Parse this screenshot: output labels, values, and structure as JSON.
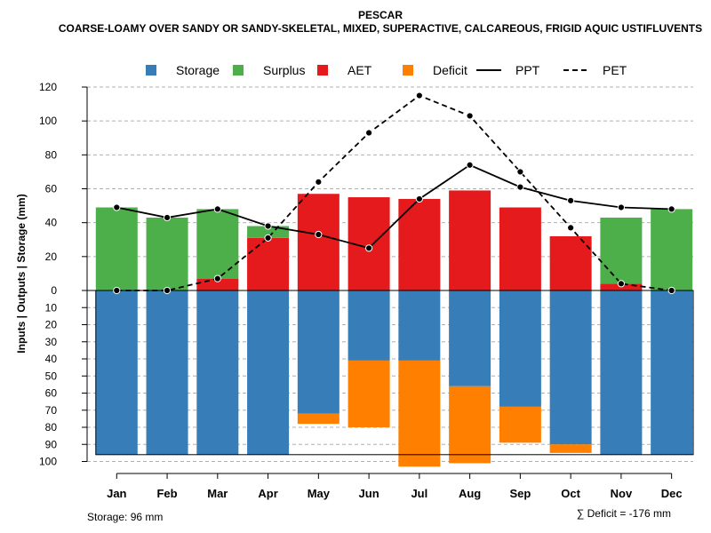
{
  "chart_data": {
    "type": "bar",
    "title": "PESCAR",
    "subtitle": "COARSE-LOAMY OVER SANDY OR SANDY-SKELETAL, MIXED, SUPERACTIVE, CALCAREOUS, FRIGID AQUIC USTIFLUVENTS",
    "ylabel": "Inputs | Outputs | Storage    (mm)",
    "categories": [
      "Jan",
      "Feb",
      "Mar",
      "Apr",
      "May",
      "Jun",
      "Jul",
      "Aug",
      "Sep",
      "Oct",
      "Nov",
      "Dec"
    ],
    "upper_ylim": [
      0,
      120
    ],
    "upper_ticks": [
      "0",
      "20",
      "40",
      "60",
      "80",
      "100",
      "120"
    ],
    "lower_ylim": [
      0,
      100
    ],
    "lower_ticks": [
      "0",
      "10",
      "20",
      "30",
      "40",
      "50",
      "60",
      "70",
      "80",
      "90",
      "100"
    ],
    "storage_capacity": 96,
    "legend": [
      {
        "label": "Storage",
        "kind": "box",
        "color": "#377EB8"
      },
      {
        "label": "Surplus",
        "kind": "box",
        "color": "#4DAF4A"
      },
      {
        "label": "AET",
        "kind": "box",
        "color": "#E41A1C"
      },
      {
        "label": "Deficit",
        "kind": "box",
        "color": "#FF7F00"
      },
      {
        "label": "PPT",
        "kind": "solid"
      },
      {
        "label": "PET",
        "kind": "dashed"
      }
    ],
    "series": [
      {
        "name": "AET",
        "color": "#E41A1C",
        "values": [
          0,
          0,
          7,
          31,
          57,
          55,
          54,
          59,
          49,
          32,
          4,
          0
        ]
      },
      {
        "name": "Surplus",
        "color": "#4DAF4A",
        "values": [
          49,
          43,
          41,
          7,
          0,
          0,
          0,
          0,
          0,
          0,
          39,
          48
        ]
      },
      {
        "name": "Storage",
        "color": "#377EB8",
        "values": [
          96,
          96,
          96,
          96,
          72,
          41,
          41,
          56,
          68,
          90,
          96,
          96
        ]
      },
      {
        "name": "Deficit",
        "color": "#FF7F00",
        "values": [
          0,
          0,
          0,
          0,
          6,
          39,
          62,
          45,
          21,
          5,
          0,
          0
        ]
      },
      {
        "name": "PPT",
        "values": [
          49,
          43,
          48,
          38,
          33,
          25,
          54,
          74,
          61,
          53,
          49,
          48
        ]
      },
      {
        "name": "PET",
        "values": [
          0,
          0,
          7,
          31,
          64,
          93,
          115,
          103,
          70,
          37,
          4,
          0
        ]
      }
    ],
    "footer_left": "Storage: 96 mm",
    "footer_right": "∑ Deficit = -176 mm"
  }
}
